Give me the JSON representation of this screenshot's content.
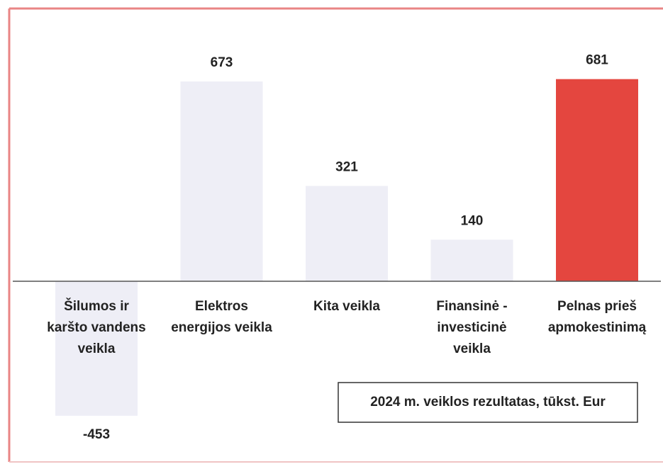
{
  "chart_data": {
    "type": "bar",
    "title": "2024 m. veiklos rezultatas, tūkst. Eur",
    "categories": [
      "Šilumos ir\nkaršto vandens\nveikla",
      "Elektros\nenergijos veikla",
      "Kita veikla",
      "Finansinė -\ninvesticinė\nveikla",
      "Pelnas prieš\napmokestinimą"
    ],
    "values": [
      -453,
      673,
      321,
      140,
      681
    ],
    "colors": [
      "#eeeef6",
      "#eeeef6",
      "#eeeef6",
      "#eeeef6",
      "#e4463f"
    ],
    "ylim": [
      -500,
      700
    ]
  }
}
